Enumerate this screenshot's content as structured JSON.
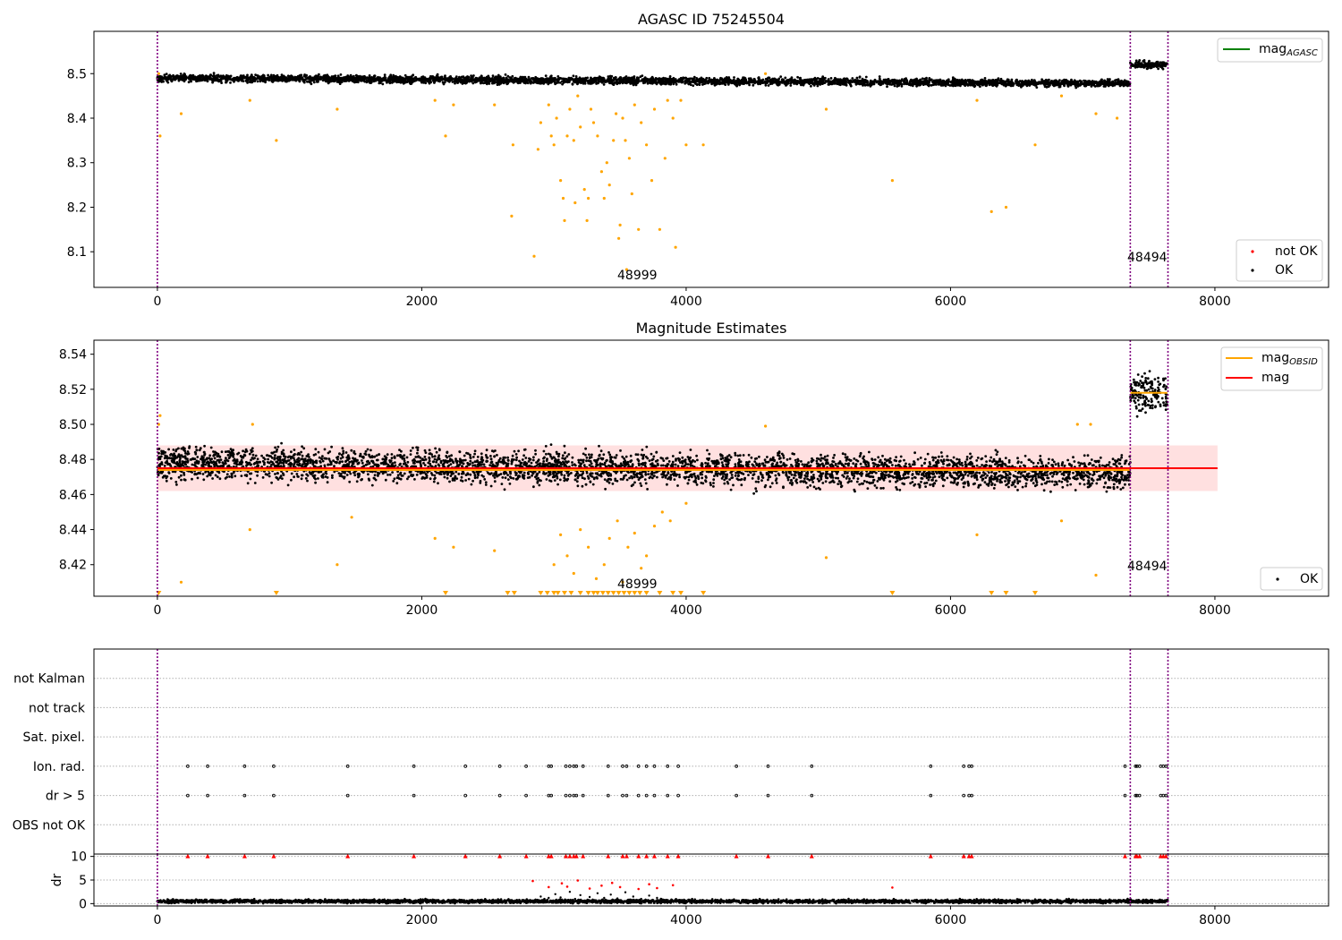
{
  "chart_data": [
    {
      "id": "top",
      "type": "scatter",
      "title": "AGASC ID 75245504",
      "xlabel": "",
      "ylabel": "",
      "xlim": [
        -480,
        8860
      ],
      "ylim": [
        8.02,
        8.595
      ],
      "xticks": [
        0,
        2000,
        4000,
        6000,
        8000
      ],
      "yticks": [
        8.1,
        8.2,
        8.3,
        8.4,
        8.5
      ],
      "vlines": [
        0,
        7360,
        7645
      ],
      "annotations": [
        {
          "text": "48999",
          "x": 3510,
          "y": 8.028
        },
        {
          "text": "48494",
          "x": 7360,
          "y": 8.078
        }
      ],
      "series": [
        {
          "kind": "ok_band",
          "color": "#000000",
          "segments": [
            {
              "x0": 0,
              "x1": 7360,
              "y0": 8.49,
              "y1": 8.478,
              "spread": 0.008
            },
            {
              "x0": 7360,
              "x1": 7640,
              "y0": 8.52,
              "y1": 8.52,
              "spread": 0.008
            }
          ]
        },
        {
          "kind": "outliers",
          "color": "#FFA500",
          "points": [
            [
              10,
              8.5
            ],
            [
              20,
              8.36
            ],
            [
              180,
              8.41
            ],
            [
              700,
              8.44
            ],
            [
              900,
              8.35
            ],
            [
              1360,
              8.42
            ],
            [
              2100,
              8.44
            ],
            [
              2180,
              8.36
            ],
            [
              2240,
              8.43
            ],
            [
              2550,
              8.43
            ],
            [
              2680,
              8.18
            ],
            [
              2690,
              8.34
            ],
            [
              2850,
              8.09
            ],
            [
              2880,
              8.33
            ],
            [
              2900,
              8.39
            ],
            [
              2960,
              8.43
            ],
            [
              2980,
              8.36
            ],
            [
              3000,
              8.34
            ],
            [
              3020,
              8.4
            ],
            [
              3050,
              8.26
            ],
            [
              3070,
              8.22
            ],
            [
              3080,
              8.17
            ],
            [
              3100,
              8.36
            ],
            [
              3120,
              8.42
            ],
            [
              3150,
              8.35
            ],
            [
              3160,
              8.21
            ],
            [
              3180,
              8.45
            ],
            [
              3200,
              8.38
            ],
            [
              3230,
              8.24
            ],
            [
              3250,
              8.17
            ],
            [
              3260,
              8.22
            ],
            [
              3280,
              8.42
            ],
            [
              3300,
              8.39
            ],
            [
              3330,
              8.36
            ],
            [
              3360,
              8.28
            ],
            [
              3380,
              8.22
            ],
            [
              3400,
              8.3
            ],
            [
              3420,
              8.25
            ],
            [
              3450,
              8.35
            ],
            [
              3470,
              8.41
            ],
            [
              3490,
              8.13
            ],
            [
              3500,
              8.16
            ],
            [
              3520,
              8.4
            ],
            [
              3540,
              8.35
            ],
            [
              3550,
              8.06
            ],
            [
              3570,
              8.31
            ],
            [
              3590,
              8.23
            ],
            [
              3610,
              8.43
            ],
            [
              3640,
              8.15
            ],
            [
              3660,
              8.39
            ],
            [
              3700,
              8.34
            ],
            [
              3740,
              8.26
            ],
            [
              3760,
              8.42
            ],
            [
              3800,
              8.15
            ],
            [
              3840,
              8.31
            ],
            [
              3860,
              8.44
            ],
            [
              3900,
              8.4
            ],
            [
              3920,
              8.11
            ],
            [
              3960,
              8.44
            ],
            [
              4000,
              8.34
            ],
            [
              4130,
              8.34
            ],
            [
              4600,
              8.5
            ],
            [
              5060,
              8.42
            ],
            [
              5560,
              8.26
            ],
            [
              6200,
              8.44
            ],
            [
              6310,
              8.19
            ],
            [
              6420,
              8.2
            ],
            [
              6640,
              8.34
            ],
            [
              6840,
              8.45
            ],
            [
              7100,
              8.41
            ],
            [
              7260,
              8.4
            ]
          ]
        }
      ],
      "legend_upper": {
        "items": [
          {
            "label": "mag",
            "sub": "AGASC",
            "color": "#008000",
            "marker": "line"
          }
        ]
      },
      "legend_lower": {
        "items": [
          {
            "label": "not OK",
            "color": "#FF0000",
            "marker": "dot"
          },
          {
            "label": "OK",
            "color": "#000000",
            "marker": "dot"
          }
        ]
      }
    },
    {
      "id": "middle",
      "type": "scatter",
      "title": "Magnitude Estimates",
      "xlabel": "",
      "ylabel": "",
      "xlim": [
        -480,
        8860
      ],
      "ylim": [
        8.402,
        8.548
      ],
      "xticks": [
        0,
        2000,
        4000,
        6000,
        8000
      ],
      "yticks": [
        8.42,
        8.44,
        8.46,
        8.48,
        8.5,
        8.52,
        8.54
      ],
      "vlines": [
        0,
        7360,
        7645
      ],
      "annotations": [
        {
          "text": "48999",
          "x": 3510,
          "y": 8.405
        },
        {
          "text": "48494",
          "x": 7360,
          "y": 8.416
        }
      ],
      "mean": {
        "y": 8.475,
        "x0": 0,
        "x1": 8020,
        "band": [
          8.462,
          8.488
        ]
      },
      "series": [
        {
          "kind": "ok_band",
          "color": "#000000",
          "segments": [
            {
              "x0": 0,
              "x1": 7360,
              "y0": 8.478,
              "y1": 8.472,
              "spread": 0.009
            },
            {
              "x0": 7360,
              "x1": 7640,
              "y0": 8.518,
              "y1": 8.518,
              "spread": 0.01
            }
          ]
        },
        {
          "kind": "obsid_lines",
          "color": "#FFA500",
          "segments": [
            {
              "x0": 0,
              "x1": 7360,
              "y": 8.474
            },
            {
              "x0": 7360,
              "x1": 7640,
              "y": 8.518
            }
          ]
        },
        {
          "kind": "outliers",
          "color": "#FFA500",
          "points": [
            [
              10,
              8.5
            ],
            [
              20,
              8.505
            ],
            [
              180,
              8.41
            ],
            [
              700,
              8.44
            ],
            [
              720,
              8.5
            ],
            [
              1360,
              8.42
            ],
            [
              1470,
              8.447
            ],
            [
              2100,
              8.435
            ],
            [
              2240,
              8.43
            ],
            [
              2550,
              8.428
            ],
            [
              3000,
              8.42
            ],
            [
              3050,
              8.437
            ],
            [
              3100,
              8.425
            ],
            [
              3150,
              8.415
            ],
            [
              3200,
              8.44
            ],
            [
              3260,
              8.43
            ],
            [
              3320,
              8.412
            ],
            [
              3380,
              8.42
            ],
            [
              3420,
              8.435
            ],
            [
              3480,
              8.445
            ],
            [
              3520,
              8.41
            ],
            [
              3560,
              8.43
            ],
            [
              3610,
              8.438
            ],
            [
              3660,
              8.418
            ],
            [
              3700,
              8.425
            ],
            [
              3760,
              8.442
            ],
            [
              3820,
              8.45
            ],
            [
              3880,
              8.445
            ],
            [
              4000,
              8.455
            ],
            [
              4600,
              8.499
            ],
            [
              5060,
              8.424
            ],
            [
              6200,
              8.437
            ],
            [
              6840,
              8.445
            ],
            [
              6960,
              8.5
            ],
            [
              7060,
              8.5
            ],
            [
              7100,
              8.414
            ]
          ]
        },
        {
          "kind": "low_triangles",
          "color": "#FFA500",
          "x": [
            10,
            900,
            2180,
            2650,
            2700,
            2900,
            2950,
            3000,
            3030,
            3080,
            3130,
            3200,
            3260,
            3300,
            3330,
            3370,
            3410,
            3450,
            3490,
            3530,
            3570,
            3610,
            3650,
            3700,
            3800,
            3900,
            3960,
            4130,
            5560,
            6310,
            6420,
            6640
          ]
        }
      ],
      "legend_upper": {
        "items": [
          {
            "label": "mag",
            "sub": "OBSID",
            "color": "#FFA500",
            "marker": "line"
          },
          {
            "label": "mag",
            "color": "#FF0000",
            "marker": "line"
          }
        ]
      },
      "legend_lower": {
        "items": [
          {
            "label": "OK",
            "color": "#000000",
            "marker": "dot"
          }
        ]
      }
    },
    {
      "id": "flags",
      "type": "scatter",
      "title": "",
      "xlabel": "",
      "ylabel": "",
      "xlim": [
        -480,
        8860
      ],
      "ylim": [
        0,
        7
      ],
      "vlines": [
        0,
        7360,
        7645
      ],
      "categories": [
        "not Kalman",
        "not track",
        "Sat. pixel.",
        "Ion. rad.",
        "dr > 5",
        "OBS not OK"
      ],
      "category_levels": [
        6,
        5,
        4,
        3,
        2,
        1
      ],
      "series": [
        {
          "name": "Ion. rad.",
          "level": 3,
          "color": "#000000",
          "x": [
            230,
            380,
            660,
            880,
            1440,
            1940,
            2330,
            2590,
            2790,
            2960,
            2980,
            3090,
            3120,
            3150,
            3170,
            3220,
            3410,
            3520,
            3550,
            3640,
            3700,
            3760,
            3860,
            3940,
            4380,
            4620,
            4950,
            5850,
            6100,
            6140,
            6160,
            7320,
            7400,
            7410,
            7430,
            7590,
            7610,
            7630
          ]
        },
        {
          "name": "dr > 5",
          "level": 2,
          "color": "#000000",
          "x": [
            230,
            380,
            660,
            880,
            1440,
            1940,
            2330,
            2590,
            2790,
            2960,
            2980,
            3090,
            3120,
            3150,
            3170,
            3220,
            3410,
            3520,
            3550,
            3640,
            3700,
            3760,
            3860,
            3940,
            4380,
            4620,
            4950,
            5850,
            6100,
            6140,
            6160,
            7320,
            7400,
            7410,
            7430,
            7590,
            7610,
            7630
          ]
        }
      ]
    },
    {
      "id": "dr",
      "type": "scatter",
      "title": "",
      "xlabel": "",
      "ylabel": "dr",
      "xlim": [
        -480,
        8860
      ],
      "ylim": [
        -0.5,
        10.5
      ],
      "xticks": [
        0,
        2000,
        4000,
        6000,
        8000
      ],
      "yticks": [
        0,
        5,
        10
      ],
      "vlines": [
        0,
        7360,
        7645
      ],
      "series": [
        {
          "kind": "baseline",
          "color": "#000000",
          "x0": 0,
          "x1": 7645,
          "y": 0.5,
          "spread": 0.35
        },
        {
          "kind": "mid_points",
          "color": "#000000",
          "points": [
            [
              2860,
              0.8
            ],
            [
              2900,
              1.5
            ],
            [
              2960,
              1.2
            ],
            [
              3010,
              2.0
            ],
            [
              3050,
              1.3
            ],
            [
              3120,
              2.5
            ],
            [
              3160,
              1.0
            ],
            [
              3200,
              1.8
            ],
            [
              3270,
              1.4
            ],
            [
              3330,
              2.2
            ],
            [
              3380,
              1.2
            ],
            [
              3430,
              1.9
            ],
            [
              3480,
              1.1
            ],
            [
              3540,
              2.4
            ],
            [
              3600,
              1.5
            ],
            [
              3660,
              1.0
            ],
            [
              3720,
              1.7
            ],
            [
              3780,
              1.2
            ]
          ]
        },
        {
          "kind": "red_points",
          "color": "#FF0000",
          "points": [
            [
              2840,
              4.8
            ],
            [
              2960,
              3.5
            ],
            [
              3060,
              4.3
            ],
            [
              3100,
              3.6
            ],
            [
              3180,
              4.9
            ],
            [
              3270,
              3.2
            ],
            [
              3360,
              3.8
            ],
            [
              3440,
              4.4
            ],
            [
              3500,
              3.5
            ],
            [
              3640,
              3.1
            ],
            [
              3720,
              4.1
            ],
            [
              3780,
              3.3
            ],
            [
              3900,
              3.9
            ],
            [
              5560,
              3.4
            ]
          ]
        },
        {
          "kind": "triangles",
          "color": "#FF0000",
          "y": 10,
          "x": [
            230,
            380,
            660,
            880,
            1440,
            1940,
            2330,
            2590,
            2790,
            2960,
            2980,
            3090,
            3120,
            3150,
            3170,
            3220,
            3410,
            3520,
            3550,
            3640,
            3700,
            3760,
            3860,
            3940,
            4380,
            4620,
            4950,
            5850,
            6100,
            6140,
            6160,
            7320,
            7400,
            7410,
            7430,
            7590,
            7610,
            7630
          ]
        }
      ]
    }
  ]
}
